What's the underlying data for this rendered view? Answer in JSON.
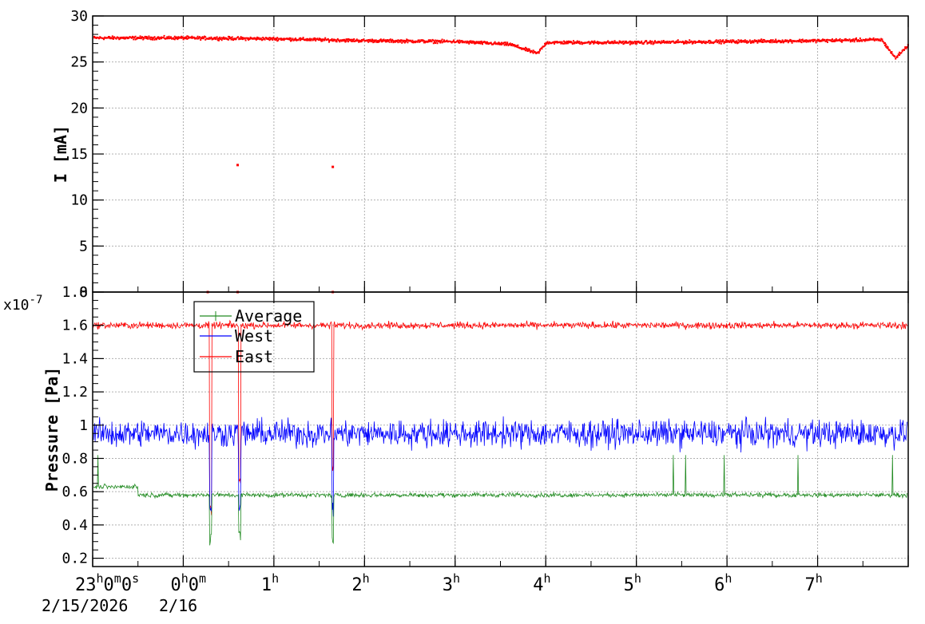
{
  "chart_data": [
    {
      "type": "scatter",
      "ylabel": "I [mA]",
      "x_unit": "hours since 23h0m0s 2/15/2026",
      "xlim": [
        -1.0,
        8.0
      ],
      "ylim": [
        0,
        30
      ],
      "yticks": [
        "0",
        "5",
        "10",
        "15",
        "20",
        "25",
        "30"
      ],
      "grid": true,
      "series": [
        {
          "color": "#ff0000",
          "baseline": 27.5,
          "points": [
            [
              -1.0,
              27.7
            ],
            [
              0.0,
              27.7
            ],
            [
              1.0,
              27.6
            ],
            [
              2.0,
              27.4
            ],
            [
              3.0,
              27.3
            ],
            [
              3.6,
              27.0
            ],
            [
              3.9,
              26.0
            ],
            [
              4.0,
              27.2
            ],
            [
              5.0,
              27.2
            ],
            [
              6.0,
              27.3
            ],
            [
              7.0,
              27.4
            ],
            [
              7.7,
              27.5
            ],
            [
              7.85,
              25.5
            ],
            [
              8.0,
              27.0
            ]
          ],
          "outliers": [
            [
              0.6,
              13.8
            ],
            [
              1.65,
              13.6
            ],
            [
              0.27,
              0.0
            ],
            [
              0.6,
              0.0
            ],
            [
              1.65,
              0.0
            ]
          ]
        }
      ]
    },
    {
      "type": "line",
      "ylabel": "Pressure [Pa]",
      "y_exponent": "x10",
      "y_exponent_power": "-7",
      "xlim": [
        -1.0,
        8.0
      ],
      "ylim": [
        0.15,
        1.8
      ],
      "yticks": [
        "0.2",
        "0.4",
        "0.6",
        "0.8",
        "1",
        "1.2",
        "1.4",
        "1.6",
        "1.8"
      ],
      "grid": true,
      "legend_position": "top-left",
      "series": [
        {
          "name": "Average",
          "color": "#228b22",
          "baseline": 0.58,
          "spread": 0.02,
          "dips": [
            [
              0.3,
              0.25
            ],
            [
              0.62,
              0.27
            ],
            [
              1.65,
              0.25
            ]
          ]
        },
        {
          "name": "West",
          "color": "#0000ff",
          "baseline": 0.95,
          "spread": 0.12,
          "dips": [
            [
              0.3,
              0.42
            ],
            [
              0.62,
              0.45
            ],
            [
              1.65,
              0.45
            ]
          ]
        },
        {
          "name": "East",
          "color": "#ff0000",
          "baseline": 1.6,
          "spread": 0.03,
          "dips": [
            [
              0.3,
              0.42
            ],
            [
              0.62,
              0.6
            ],
            [
              1.65,
              0.7
            ]
          ]
        }
      ]
    }
  ],
  "x_axis": {
    "labels": [
      {
        "hour": -1.0,
        "main": "23",
        "sup1": "h",
        "mid": "0",
        "sup2": "m",
        "end": "0",
        "sup3": "s"
      },
      {
        "hour": 0.0,
        "main": "0",
        "sup1": "h",
        "mid": "0",
        "sup2": "m",
        "end": "",
        "sup3": ""
      },
      {
        "hour": 1.0,
        "main": "1",
        "sup1": "h"
      },
      {
        "hour": 2.0,
        "main": "2",
        "sup1": "h"
      },
      {
        "hour": 3.0,
        "main": "3",
        "sup1": "h"
      },
      {
        "hour": 4.0,
        "main": "4",
        "sup1": "h"
      },
      {
        "hour": 5.0,
        "main": "5",
        "sup1": "h"
      },
      {
        "hour": 6.0,
        "main": "6",
        "sup1": "h"
      },
      {
        "hour": 7.0,
        "main": "7",
        "sup1": "h"
      }
    ],
    "dates": [
      "2/15/2026",
      "2/16"
    ]
  }
}
